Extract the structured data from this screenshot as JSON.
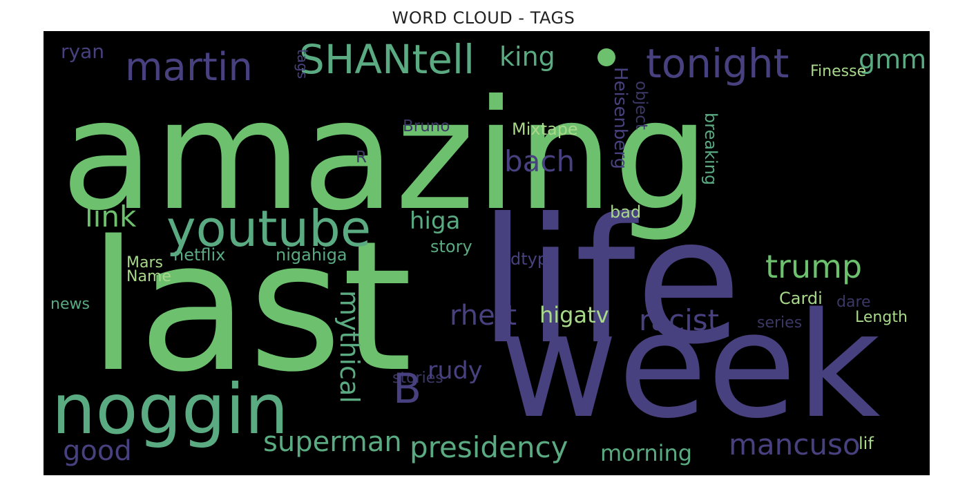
{
  "chart_data": {
    "type": "wordcloud",
    "title": "WORD CLOUD - TAGS",
    "colors": {
      "green": "#6cc06e",
      "teal": "#5aaa82",
      "purple": "#48417f",
      "dim_purple": "#3b3866",
      "light_green": "#c7e6a3"
    },
    "words": [
      {
        "text": "amazing",
        "color": "#6cc06e",
        "rotate": false
      },
      {
        "text": "life",
        "color": "#48417f",
        "rotate": false
      },
      {
        "text": "last",
        "color": "#6cc06e",
        "rotate": false
      },
      {
        "text": "week",
        "color": "#48417f",
        "rotate": false
      },
      {
        "text": "noggin",
        "color": "#5aaa82",
        "rotate": false
      },
      {
        "text": "youtube",
        "color": "#5aaa82",
        "rotate": false
      },
      {
        "text": "tonight",
        "color": "#48417f",
        "rotate": false
      },
      {
        "text": "martin",
        "color": "#48417f",
        "rotate": false
      },
      {
        "text": "SHANtell",
        "color": "#5aaa82",
        "rotate": false
      },
      {
        "text": "king",
        "color": "#5aaa82",
        "rotate": false
      },
      {
        "text": "gmm",
        "color": "#5aaa82",
        "rotate": false
      },
      {
        "text": "ryan",
        "color": "#48417f",
        "rotate": false
      },
      {
        "text": "tags",
        "color": "#48417f",
        "rotate": true
      },
      {
        "text": "Finesse",
        "color": "#a8d88a",
        "rotate": false
      },
      {
        "text": "Heisenberg",
        "color": "#48417f",
        "rotate": true
      },
      {
        "text": "object",
        "color": "#3b3866",
        "rotate": true
      },
      {
        "text": "breaking",
        "color": "#5aaa82",
        "rotate": true
      },
      {
        "text": "Bruno",
        "color": "#3b3866",
        "rotate": false
      },
      {
        "text": "Mixtape",
        "color": "#a8d88a",
        "rotate": false
      },
      {
        "text": "R",
        "color": "#3b3866",
        "rotate": false
      },
      {
        "text": "bach",
        "color": "#48417f",
        "rotate": false
      },
      {
        "text": "link",
        "color": "#6cc06e",
        "rotate": false
      },
      {
        "text": "higa",
        "color": "#5aaa82",
        "rotate": false
      },
      {
        "text": "bad",
        "color": "#a8d88a",
        "rotate": false
      },
      {
        "text": "trump",
        "color": "#6cc06e",
        "rotate": false
      },
      {
        "text": "story",
        "color": "#5aaa82",
        "rotate": false
      },
      {
        "text": "netflix",
        "color": "#5aaa82",
        "rotate": false
      },
      {
        "text": "nigahiga",
        "color": "#5aaa82",
        "rotate": false
      },
      {
        "text": "Mars",
        "color": "#a8d88a",
        "rotate": false
      },
      {
        "text": "Name",
        "color": "#a8d88a",
        "rotate": false
      },
      {
        "text": "dtype",
        "color": "#48417f",
        "rotate": false
      },
      {
        "text": "news",
        "color": "#5aaa82",
        "rotate": false
      },
      {
        "text": "mythical",
        "color": "#5aaa82",
        "rotate": true
      },
      {
        "text": "rhett",
        "color": "#48417f",
        "rotate": false
      },
      {
        "text": "higatv",
        "color": "#a8d88a",
        "rotate": false
      },
      {
        "text": "racist",
        "color": "#48417f",
        "rotate": false
      },
      {
        "text": "Cardi",
        "color": "#a8d88a",
        "rotate": false
      },
      {
        "text": "dare",
        "color": "#3b3866",
        "rotate": false
      },
      {
        "text": "series",
        "color": "#3b3866",
        "rotate": false
      },
      {
        "text": "Length",
        "color": "#a8d88a",
        "rotate": false
      },
      {
        "text": "stories",
        "color": "#3b3866",
        "rotate": false
      },
      {
        "text": "B",
        "color": "#48417f",
        "rotate": false
      },
      {
        "text": "rudy",
        "color": "#48417f",
        "rotate": false
      },
      {
        "text": "superman",
        "color": "#5aaa82",
        "rotate": false
      },
      {
        "text": "good",
        "color": "#48417f",
        "rotate": false
      },
      {
        "text": "presidency",
        "color": "#5aaa82",
        "rotate": false
      },
      {
        "text": "morning",
        "color": "#5aaa82",
        "rotate": false
      },
      {
        "text": "mancuso",
        "color": "#48417f",
        "rotate": false
      },
      {
        "text": "lif",
        "color": "#a8d88a",
        "rotate": false
      }
    ]
  }
}
